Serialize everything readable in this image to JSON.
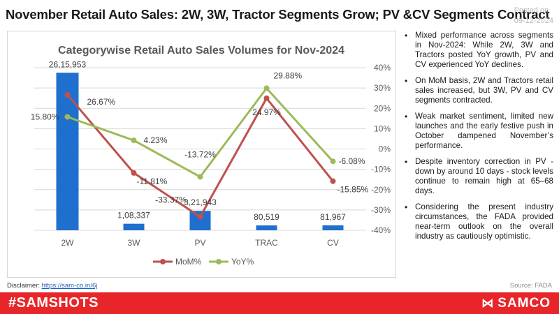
{
  "header": {
    "title": "November Retail Auto Sales: 2W, 3W, Tractor Segments Grow; PV &CV Segments Contract",
    "posted_label": "Posted on",
    "posted_date": "09-12-2024"
  },
  "notes": [
    "Mixed performance across segments in Nov-2024: While 2W, 3W and Tractors posted YoY growth, PV and CV experienced YoY declines.",
    "On MoM basis, 2W and Tractors retail sales increased, but 3W, PV and CV segments contracted.",
    "Weak market sentiment, limited new launches and the early festive push in October dampened November’s performance.",
    "Despite inventory correction in PV - down by around 10 days - stock levels continue to remain high at 65–68 days.",
    "Considering the present industry circumstances, the FADA provided near-term outlook on the overall industry as cautiously optimistic."
  ],
  "footer": {
    "disclaimer_label": "Disclaimer:",
    "disclaimer_link": "https://sam-co.in/6j",
    "source": "Source: FADA",
    "hashtag": "#SAMSHOTS",
    "brand": "SAMCO"
  },
  "colors": {
    "bar": "#1f6fce",
    "mom": "#c0504d",
    "yoy": "#9bbb59",
    "footer": "#e8262a"
  },
  "chart_data": {
    "type": "bar",
    "title": "Categorywise Retail Auto Sales Volumes for Nov-2024",
    "categories": [
      "2W",
      "3W",
      "PV",
      "TRAC",
      "CV"
    ],
    "values": [
      2615953,
      108337,
      321943,
      80519,
      81967
    ],
    "value_labels": [
      "26,15,953",
      "1,08,337",
      "3,21,943",
      "80,519",
      "81,967"
    ],
    "ylim": [
      0,
      2700000
    ],
    "grid": true,
    "secondary_axis": {
      "ylim": [
        -40,
        40
      ],
      "tick_labels": [
        "40%",
        "30%",
        "20%",
        "10%",
        "0%",
        "-10%",
        "-20%",
        "-30%",
        "-40%"
      ]
    },
    "series": [
      {
        "name": "MoM%",
        "type": "line",
        "axis": "secondary",
        "values": [
          26.67,
          -11.81,
          -33.37,
          24.97,
          -15.85
        ],
        "labels": [
          "26.67%",
          "-11.81%",
          "-33.37%",
          "24.97%",
          "-15.85%"
        ]
      },
      {
        "name": "YoY%",
        "type": "line",
        "axis": "secondary",
        "values": [
          15.8,
          4.23,
          -13.72,
          29.88,
          -6.08
        ],
        "labels": [
          "15.80%",
          "4.23%",
          "-13.72%",
          "29.88%",
          "-6.08%"
        ]
      }
    ],
    "legend": "bottom"
  }
}
